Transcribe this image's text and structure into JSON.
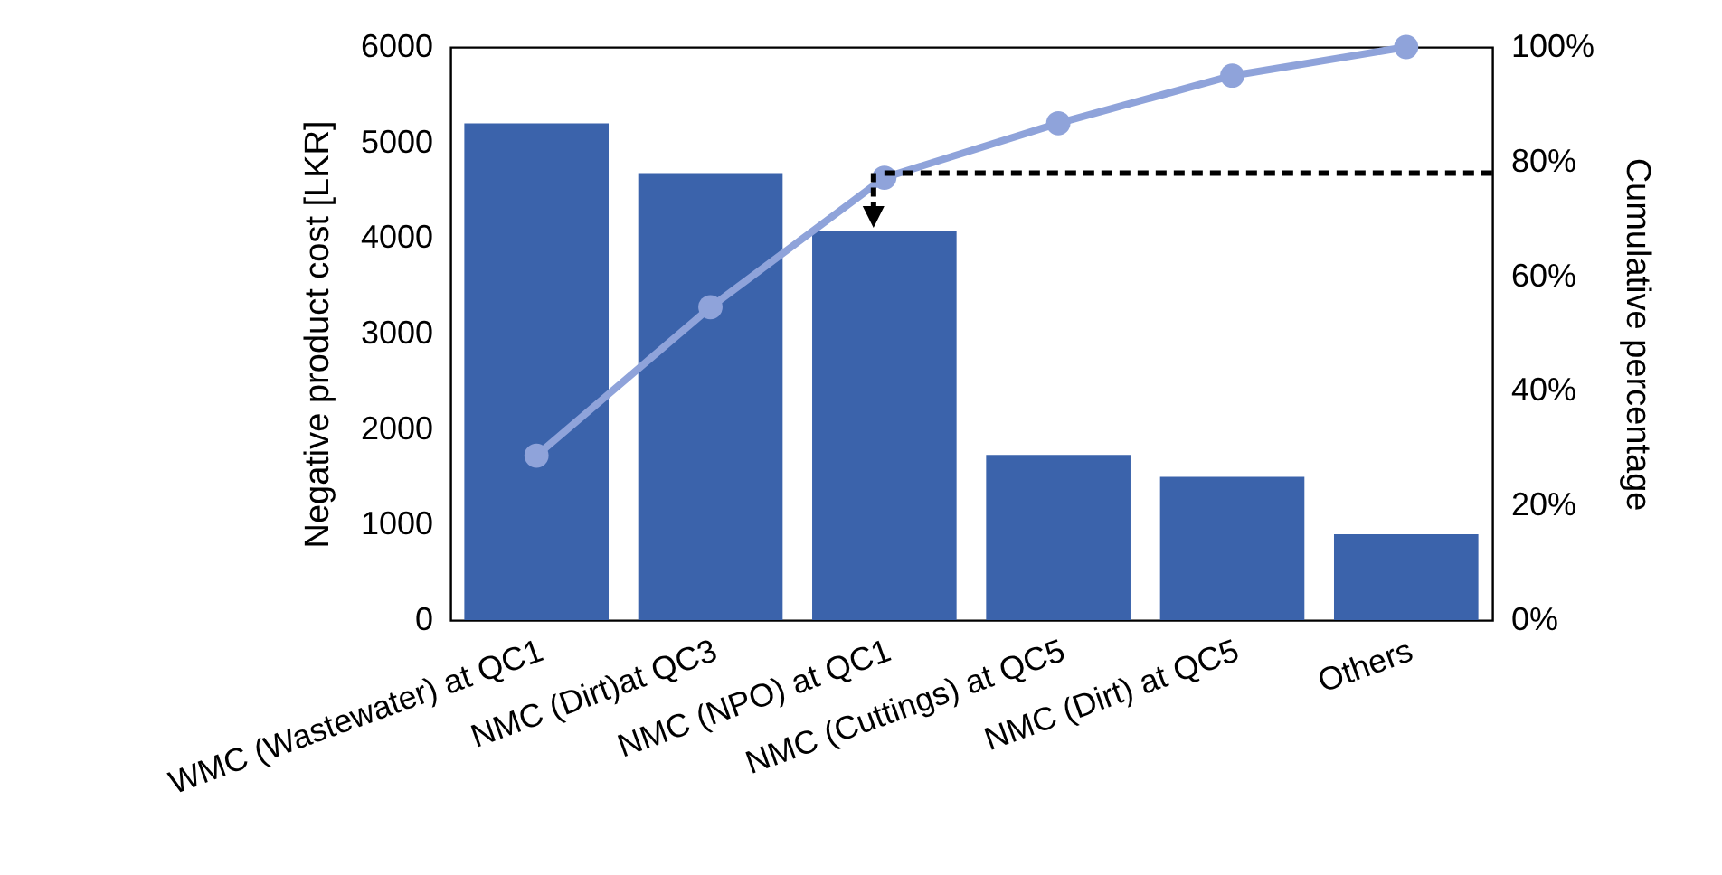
{
  "chart_data": {
    "type": "bar",
    "categories": [
      "WMC (Wastewater) at QC1",
      "NMC (Dirt)at QC3",
      "NMC (NPO) at QC1",
      "NMC (Cuttings) at QC5",
      "NMC (Dirt) at QC5",
      "Others"
    ],
    "ylabel": "Negative product cost [LKR]",
    "y2label": "Cumulative percentage",
    "ylim": [
      0,
      6000
    ],
    "yticks": [
      0,
      1000,
      2000,
      3000,
      4000,
      5000,
      6000
    ],
    "y2lim": [
      0,
      100
    ],
    "y2ticks": [
      {
        "value": 0,
        "label": "0%"
      },
      {
        "value": 20,
        "label": "20%"
      },
      {
        "value": 40,
        "label": "40%"
      },
      {
        "value": 60,
        "label": "60%"
      },
      {
        "value": 80,
        "label": "80%"
      },
      {
        "value": 100,
        "label": "100%"
      }
    ],
    "series": [
      {
        "color": "#3b63ab",
        "values": [
          5200,
          4680,
          4070,
          1730,
          1500,
          900
        ]
      },
      {
        "type": "line",
        "axis": "y2",
        "color": "#8fa3da",
        "values": [
          28.7,
          54.6,
          77.2,
          86.7,
          95,
          100
        ]
      }
    ],
    "marker": "circle",
    "grid": false,
    "ref_lines": [
      {
        "axis": "y2",
        "value": 78,
        "color": "#000000",
        "line_style": "dashed"
      }
    ]
  }
}
